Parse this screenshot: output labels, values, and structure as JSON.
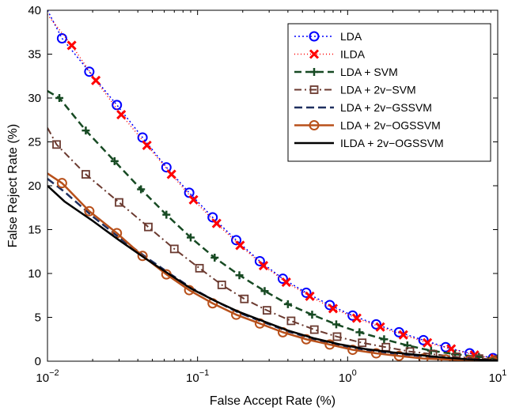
{
  "chart_data": {
    "type": "line",
    "xlabel": "False Accept Rate (%)",
    "ylabel": "False Reject Rate (%)",
    "xscale": "log",
    "xlim": [
      0.01,
      10
    ],
    "ylim": [
      0,
      40
    ],
    "grid": false,
    "legend_position": "top-right",
    "x_ticks": [
      {
        "value": 0.01,
        "base": "10",
        "exp": "−2"
      },
      {
        "value": 0.1,
        "base": "10",
        "exp": "−1"
      },
      {
        "value": 1,
        "base": "10",
        "exp": "0"
      },
      {
        "value": 10,
        "base": "10",
        "exp": "1"
      }
    ],
    "y_ticks": [
      0,
      5,
      10,
      15,
      20,
      25,
      30,
      35,
      40
    ],
    "series": [
      {
        "name": "LDA",
        "color": "#0000ff",
        "dash": "2,3",
        "marker": "circle",
        "width": 1.5,
        "x": [
          0.01,
          0.0125,
          0.019,
          0.029,
          0.043,
          0.062,
          0.088,
          0.126,
          0.181,
          0.26,
          0.37,
          0.53,
          0.76,
          1.08,
          1.55,
          2.2,
          3.2,
          4.5,
          6.5,
          9.3
        ],
        "y": [
          40.0,
          36.8,
          33.0,
          29.2,
          25.5,
          22.1,
          19.2,
          16.4,
          13.8,
          11.4,
          9.4,
          7.8,
          6.4,
          5.2,
          4.2,
          3.3,
          2.4,
          1.6,
          0.9,
          0.35
        ]
      },
      {
        "name": "ILDA",
        "color": "#ff0000",
        "dash": "1,3",
        "marker": "x",
        "width": 1.5,
        "x": [
          0.01,
          0.0145,
          0.021,
          0.031,
          0.046,
          0.067,
          0.094,
          0.134,
          0.192,
          0.275,
          0.39,
          0.56,
          0.8,
          1.15,
          1.65,
          2.35,
          3.4,
          4.9,
          7.0,
          9.6
        ],
        "y": [
          39.5,
          36.0,
          32.0,
          28.1,
          24.6,
          21.3,
          18.4,
          15.7,
          13.2,
          10.9,
          9.0,
          7.4,
          6.0,
          4.9,
          3.9,
          3.0,
          2.1,
          1.4,
          0.7,
          0.3
        ]
      },
      {
        "name": "LDA + SVM",
        "color": "#174a23",
        "dash": "9,5",
        "marker": "plus",
        "width": 2.5,
        "x": [
          0.01,
          0.012,
          0.018,
          0.028,
          0.042,
          0.062,
          0.09,
          0.13,
          0.19,
          0.28,
          0.4,
          0.58,
          0.84,
          1.2,
          1.75,
          2.5,
          3.6,
          5.2,
          7.5,
          10
        ],
        "y": [
          30.8,
          30.0,
          26.3,
          22.8,
          19.6,
          16.7,
          14.1,
          11.8,
          9.8,
          8.0,
          6.5,
          5.3,
          4.2,
          3.3,
          2.5,
          1.8,
          1.2,
          0.8,
          0.5,
          0.3
        ]
      },
      {
        "name": "LDA + 2v−SVM",
        "color": "#6b3a30",
        "dash": "9,4,2,4",
        "marker": "square",
        "width": 2,
        "x": [
          0.01,
          0.0115,
          0.018,
          0.03,
          0.047,
          0.07,
          0.103,
          0.145,
          0.205,
          0.29,
          0.42,
          0.6,
          0.85,
          1.25,
          1.8,
          2.6,
          3.7,
          5.3,
          7.5,
          10
        ],
        "y": [
          26.6,
          24.7,
          21.3,
          18.1,
          15.3,
          12.8,
          10.6,
          8.7,
          7.1,
          5.8,
          4.6,
          3.6,
          2.8,
          2.1,
          1.6,
          1.1,
          0.8,
          0.5,
          0.3,
          0.2
        ]
      },
      {
        "name": "LDA + 2v−GSSVM",
        "color": "#1f2f5f",
        "dash": "10,5",
        "marker": "none",
        "width": 2.5,
        "x": [
          0.01,
          0.013,
          0.02,
          0.03,
          0.045,
          0.065,
          0.09,
          0.13,
          0.19,
          0.28,
          0.4,
          0.6,
          0.9,
          1.3,
          2.0,
          3.0,
          4.5,
          6.5,
          10
        ],
        "y": [
          20.8,
          19.3,
          16.5,
          14.1,
          11.9,
          10.0,
          8.4,
          6.9,
          5.5,
          4.4,
          3.4,
          2.5,
          1.8,
          1.3,
          0.9,
          0.6,
          0.4,
          0.2,
          0.1
        ]
      },
      {
        "name": "LDA + 2v−OGSSVM",
        "color": "#b8501a",
        "dash": "",
        "marker": "circle",
        "width": 2.5,
        "x": [
          0.01,
          0.0125,
          0.019,
          0.029,
          0.043,
          0.062,
          0.088,
          0.126,
          0.181,
          0.26,
          0.37,
          0.53,
          0.76,
          1.08,
          1.55,
          2.2,
          3.2,
          4.5,
          6.5,
          9.3
        ],
        "y": [
          21.4,
          20.3,
          17.1,
          14.6,
          12.0,
          9.9,
          8.1,
          6.6,
          5.3,
          4.3,
          3.3,
          2.5,
          1.9,
          1.3,
          0.9,
          0.6,
          0.3,
          0.2,
          0.1,
          0.0
        ]
      },
      {
        "name": "ILDA + 2v−OGSSVM",
        "color": "#000000",
        "dash": "",
        "marker": "none",
        "width": 2.5,
        "x": [
          0.01,
          0.013,
          0.02,
          0.03,
          0.045,
          0.065,
          0.09,
          0.13,
          0.19,
          0.28,
          0.4,
          0.6,
          0.9,
          1.3,
          2.0,
          3.0,
          4.5,
          6.5,
          10
        ],
        "y": [
          20.0,
          18.2,
          16.0,
          13.8,
          11.7,
          9.9,
          8.3,
          6.9,
          5.6,
          4.5,
          3.5,
          2.6,
          1.9,
          1.4,
          1.0,
          0.7,
          0.4,
          0.2,
          0.1
        ]
      }
    ]
  }
}
